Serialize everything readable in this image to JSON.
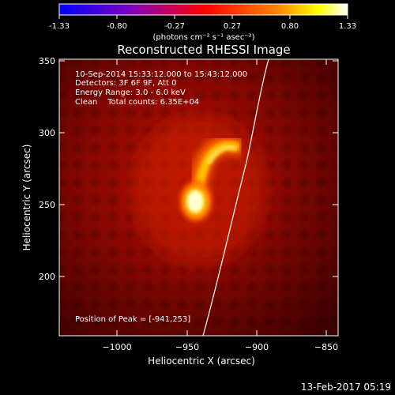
{
  "colorbar": {
    "ticks": [
      "-1.33",
      "-0.80",
      "-0.27",
      "0.27",
      "0.80",
      "1.33"
    ],
    "unit_label": "(photons cm⁻² s⁻¹ asec⁻²)",
    "colors": [
      "#0000ff",
      "#8000c0",
      "#ff0000",
      "#ff8000",
      "#ffff00",
      "#ffffff"
    ]
  },
  "title": "Reconstructed RHESSI Image",
  "info": {
    "time_range": "10-Sep-2014 15:33:12.000 to 15:43:12.000",
    "detectors": "Detectors: 3F 6F 9F, Att 0",
    "energy": "Energy Range: 3.0 - 6.0 keV",
    "clean": "Clean    Total counts: 6.35E+04"
  },
  "peak_label": "Position of Peak = [-941,253]",
  "xaxis": {
    "title": "Heliocentric X (arcsec)",
    "ticks": [
      "−1000",
      "−950",
      "−900",
      "−850"
    ]
  },
  "yaxis": {
    "title": "Heliocentric Y (arcsec)",
    "ticks": [
      "350",
      "300",
      "250",
      "200"
    ]
  },
  "footer_timestamp": "13-Feb-2017 05:19"
}
